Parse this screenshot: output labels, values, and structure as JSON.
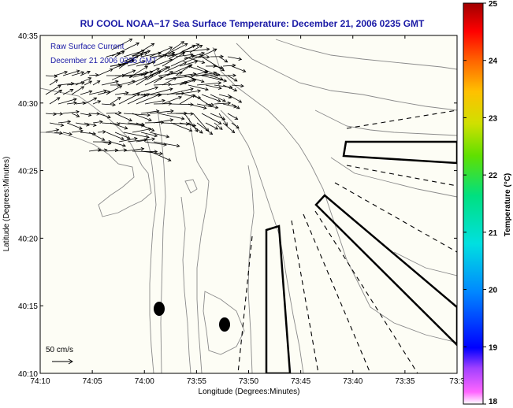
{
  "title": "RU COOL  NOAA−17  Sea Surface Temperature:  December 21, 2006 0235 GMT",
  "legend": {
    "line1": "Raw Surface Current",
    "line2": "December 21 2006 0235 GMT"
  },
  "scale": {
    "label": "50 cm/s"
  },
  "axes": {
    "xlabel": "Longitude (Degrees:Minutes)",
    "ylabel": "Latitude (Degrees:Minutes)",
    "xticks": [
      "74:10",
      "74:05",
      "74:00",
      "73:55",
      "73:50",
      "73:45",
      "73:40",
      "73:35",
      "73:3"
    ],
    "yticks": [
      "40:35",
      "40:30",
      "40:25",
      "40:20",
      "40:15",
      "40:10"
    ],
    "x_range_deg": [
      -74.1667,
      -73.5
    ],
    "y_range_deg": [
      40.1667,
      40.5833
    ]
  },
  "colorbar": {
    "label": "Temperature (°C)",
    "min": 18,
    "max": 25,
    "ticks": [
      "25",
      "24",
      "23",
      "22",
      "21",
      "20",
      "19",
      "18"
    ]
  },
  "colors": {
    "title": "#1a1aa6",
    "plot_bg": "#fdfdf5",
    "contour": "#888888",
    "arrow": "#000000"
  }
}
